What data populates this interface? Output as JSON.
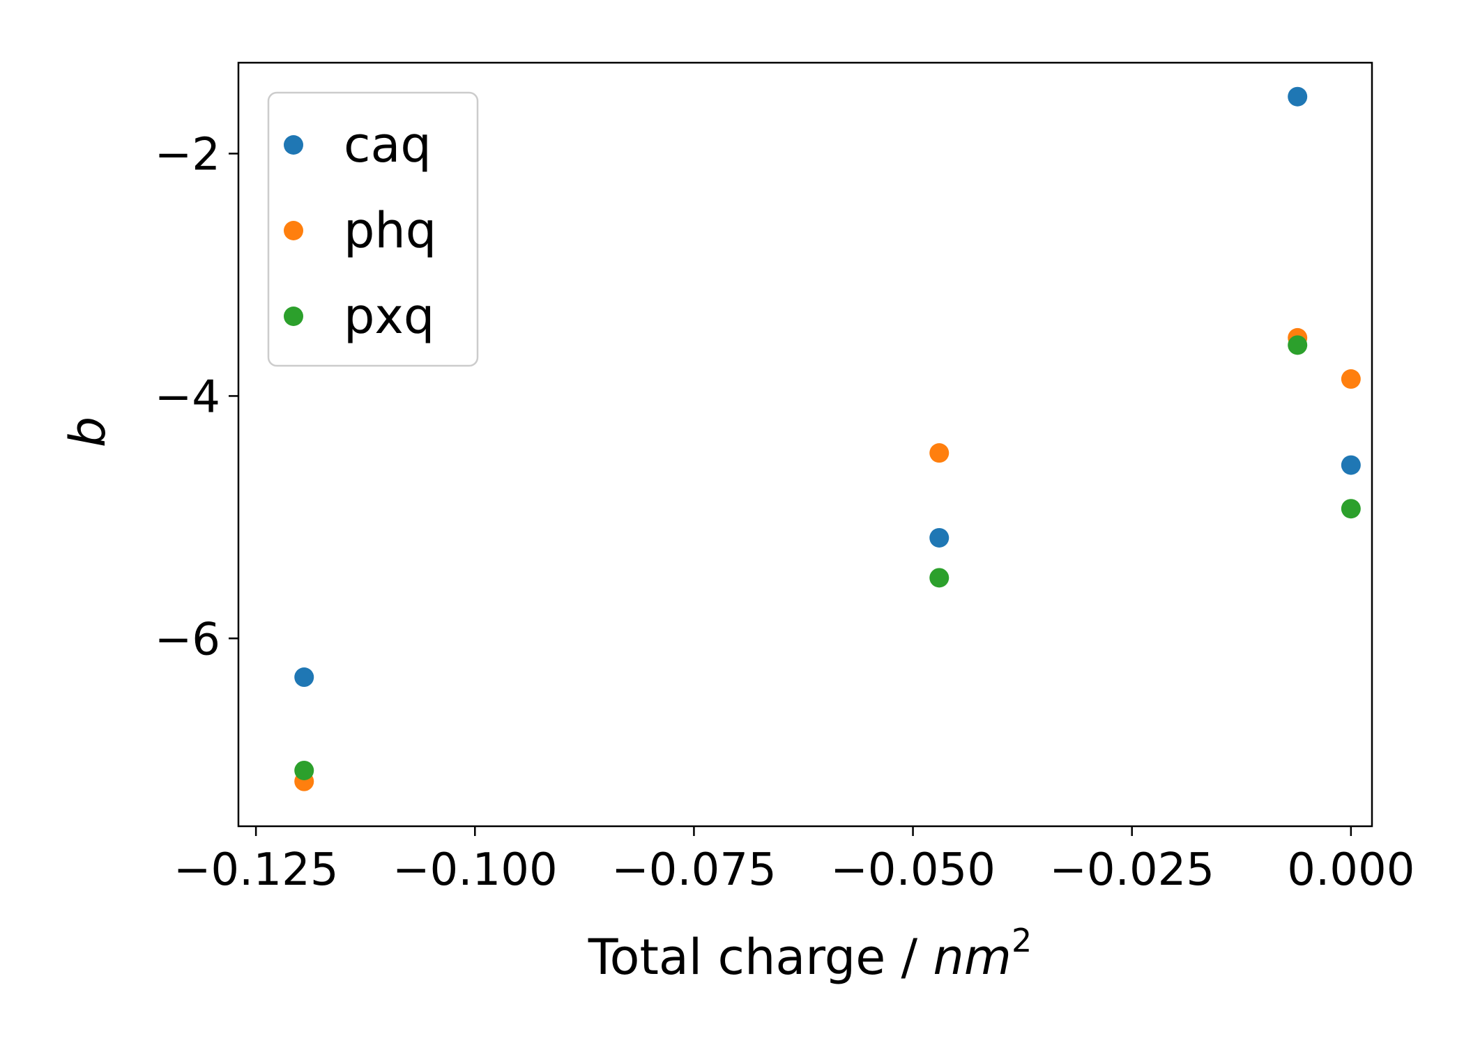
{
  "chart_data": {
    "type": "scatter",
    "xlabel": "Total charge / nm²",
    "xlabel_parts": {
      "text": "Total charge / ",
      "unit_base": "nm",
      "unit_exp": "2"
    },
    "ylabel": "b",
    "xlim": [
      -0.127,
      0.0024
    ],
    "ylim": [
      -7.55,
      -1.25
    ],
    "xticks": [
      -0.125,
      -0.1,
      -0.075,
      -0.05,
      -0.025,
      0.0
    ],
    "xtick_labels": [
      "−0.125",
      "−0.100",
      "−0.075",
      "−0.050",
      "−0.025",
      "0.000"
    ],
    "yticks": [
      -6,
      -4,
      -2
    ],
    "ytick_labels": [
      "−6",
      "−4",
      "−2"
    ],
    "grid": false,
    "legend_position": "top-left",
    "series": [
      {
        "name": "caq",
        "color": "#1f77b4",
        "points": [
          [
            -0.1195,
            -6.32
          ],
          [
            -0.047,
            -5.17
          ],
          [
            -0.0061,
            -1.53
          ],
          [
            0.0,
            -4.57
          ]
        ]
      },
      {
        "name": "phq",
        "color": "#ff7f0e",
        "points": [
          [
            -0.1195,
            -7.18
          ],
          [
            -0.047,
            -4.47
          ],
          [
            -0.0061,
            -3.52
          ],
          [
            0.0,
            -3.86
          ]
        ]
      },
      {
        "name": "pxq",
        "color": "#2ca02c",
        "points": [
          [
            -0.1195,
            -7.09
          ],
          [
            -0.047,
            -5.5
          ],
          [
            -0.0061,
            -3.58
          ],
          [
            0.0,
            -4.93
          ]
        ]
      }
    ]
  }
}
